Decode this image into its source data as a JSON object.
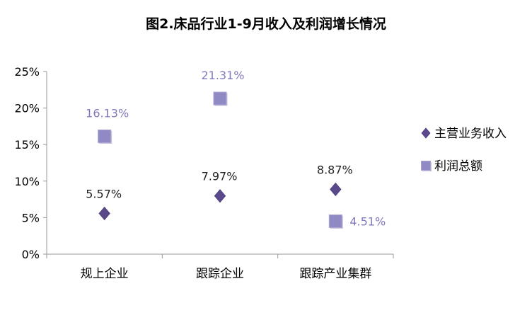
{
  "chart_data": {
    "type": "scatter",
    "title": "图2.床品行业1-9月收入及利润增长情况",
    "categories": [
      "规上企业",
      "跟踪企业",
      "跟踪产业集群"
    ],
    "ylim": [
      0,
      25
    ],
    "y_ticks": [
      "0%",
      "5%",
      "10%",
      "15%",
      "20%",
      "25%"
    ],
    "grid": false,
    "legend_position": "right",
    "series": [
      {
        "name": "主营业务收入",
        "marker": "diamond",
        "color": "#5b4a8b",
        "values": [
          5.57,
          7.97,
          8.87
        ],
        "labels": [
          "5.57%",
          "7.97%",
          "8.87%"
        ]
      },
      {
        "name": "利润总额",
        "marker": "square",
        "color": "#8f89c4",
        "values": [
          16.13,
          21.31,
          4.51
        ],
        "labels": [
          "16.13%",
          "21.31%",
          "4.51%"
        ]
      }
    ]
  }
}
